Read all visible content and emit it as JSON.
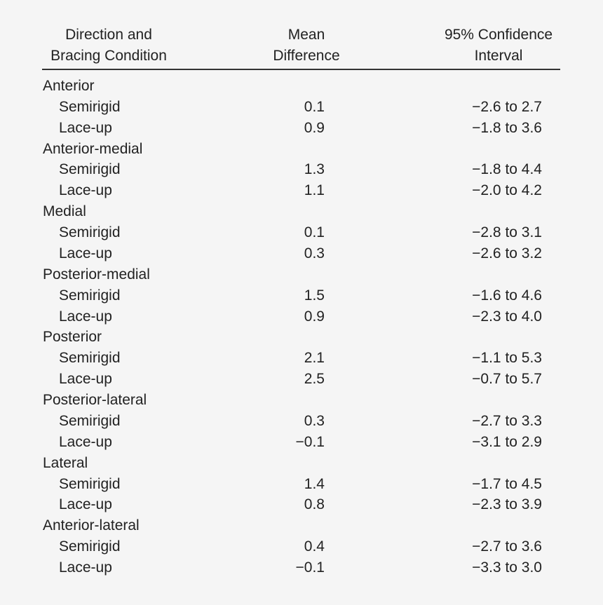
{
  "table": {
    "header": [
      [
        "Direction and",
        "Bracing Condition"
      ],
      [
        "Mean",
        "Difference"
      ],
      [
        "95% Confidence",
        "Interval"
      ]
    ],
    "groups": [
      {
        "label": "Anterior",
        "rows": [
          [
            "Semirigid",
            "0.1",
            "−2.6 to 2.7"
          ],
          [
            "Lace-up",
            "0.9",
            "−1.8 to 3.6"
          ]
        ]
      },
      {
        "label": "Anterior-medial",
        "rows": [
          [
            "Semirigid",
            "1.3",
            "−1.8 to 4.4"
          ],
          [
            "Lace-up",
            "1.1",
            "−2.0 to 4.2"
          ]
        ]
      },
      {
        "label": "Medial",
        "rows": [
          [
            "Semirigid",
            "0.1",
            "−2.8 to 3.1"
          ],
          [
            "Lace-up",
            "0.3",
            "−2.6 to 3.2"
          ]
        ]
      },
      {
        "label": "Posterior-medial",
        "rows": [
          [
            "Semirigid",
            "1.5",
            "−1.6 to 4.6"
          ],
          [
            "Lace-up",
            "0.9",
            "−2.3 to 4.0"
          ]
        ]
      },
      {
        "label": "Posterior",
        "rows": [
          [
            "Semirigid",
            "2.1",
            "−1.1 to 5.3"
          ],
          [
            "Lace-up",
            "2.5",
            "−0.7 to 5.7"
          ]
        ]
      },
      {
        "label": "Posterior-lateral",
        "rows": [
          [
            "Semirigid",
            "0.3",
            "−2.7 to 3.3"
          ],
          [
            "Lace-up",
            "−0.1",
            "−3.1 to 2.9"
          ]
        ]
      },
      {
        "label": "Lateral",
        "rows": [
          [
            "Semirigid",
            "1.4",
            "−1.7 to 4.5"
          ],
          [
            "Lace-up",
            "0.8",
            "−2.3 to 3.9"
          ]
        ]
      },
      {
        "label": "Anterior-lateral",
        "rows": [
          [
            "Semirigid",
            "0.4",
            "−2.7 to 3.6"
          ],
          [
            "Lace-up",
            "−0.1",
            "−3.3 to 3.0"
          ]
        ]
      }
    ]
  }
}
